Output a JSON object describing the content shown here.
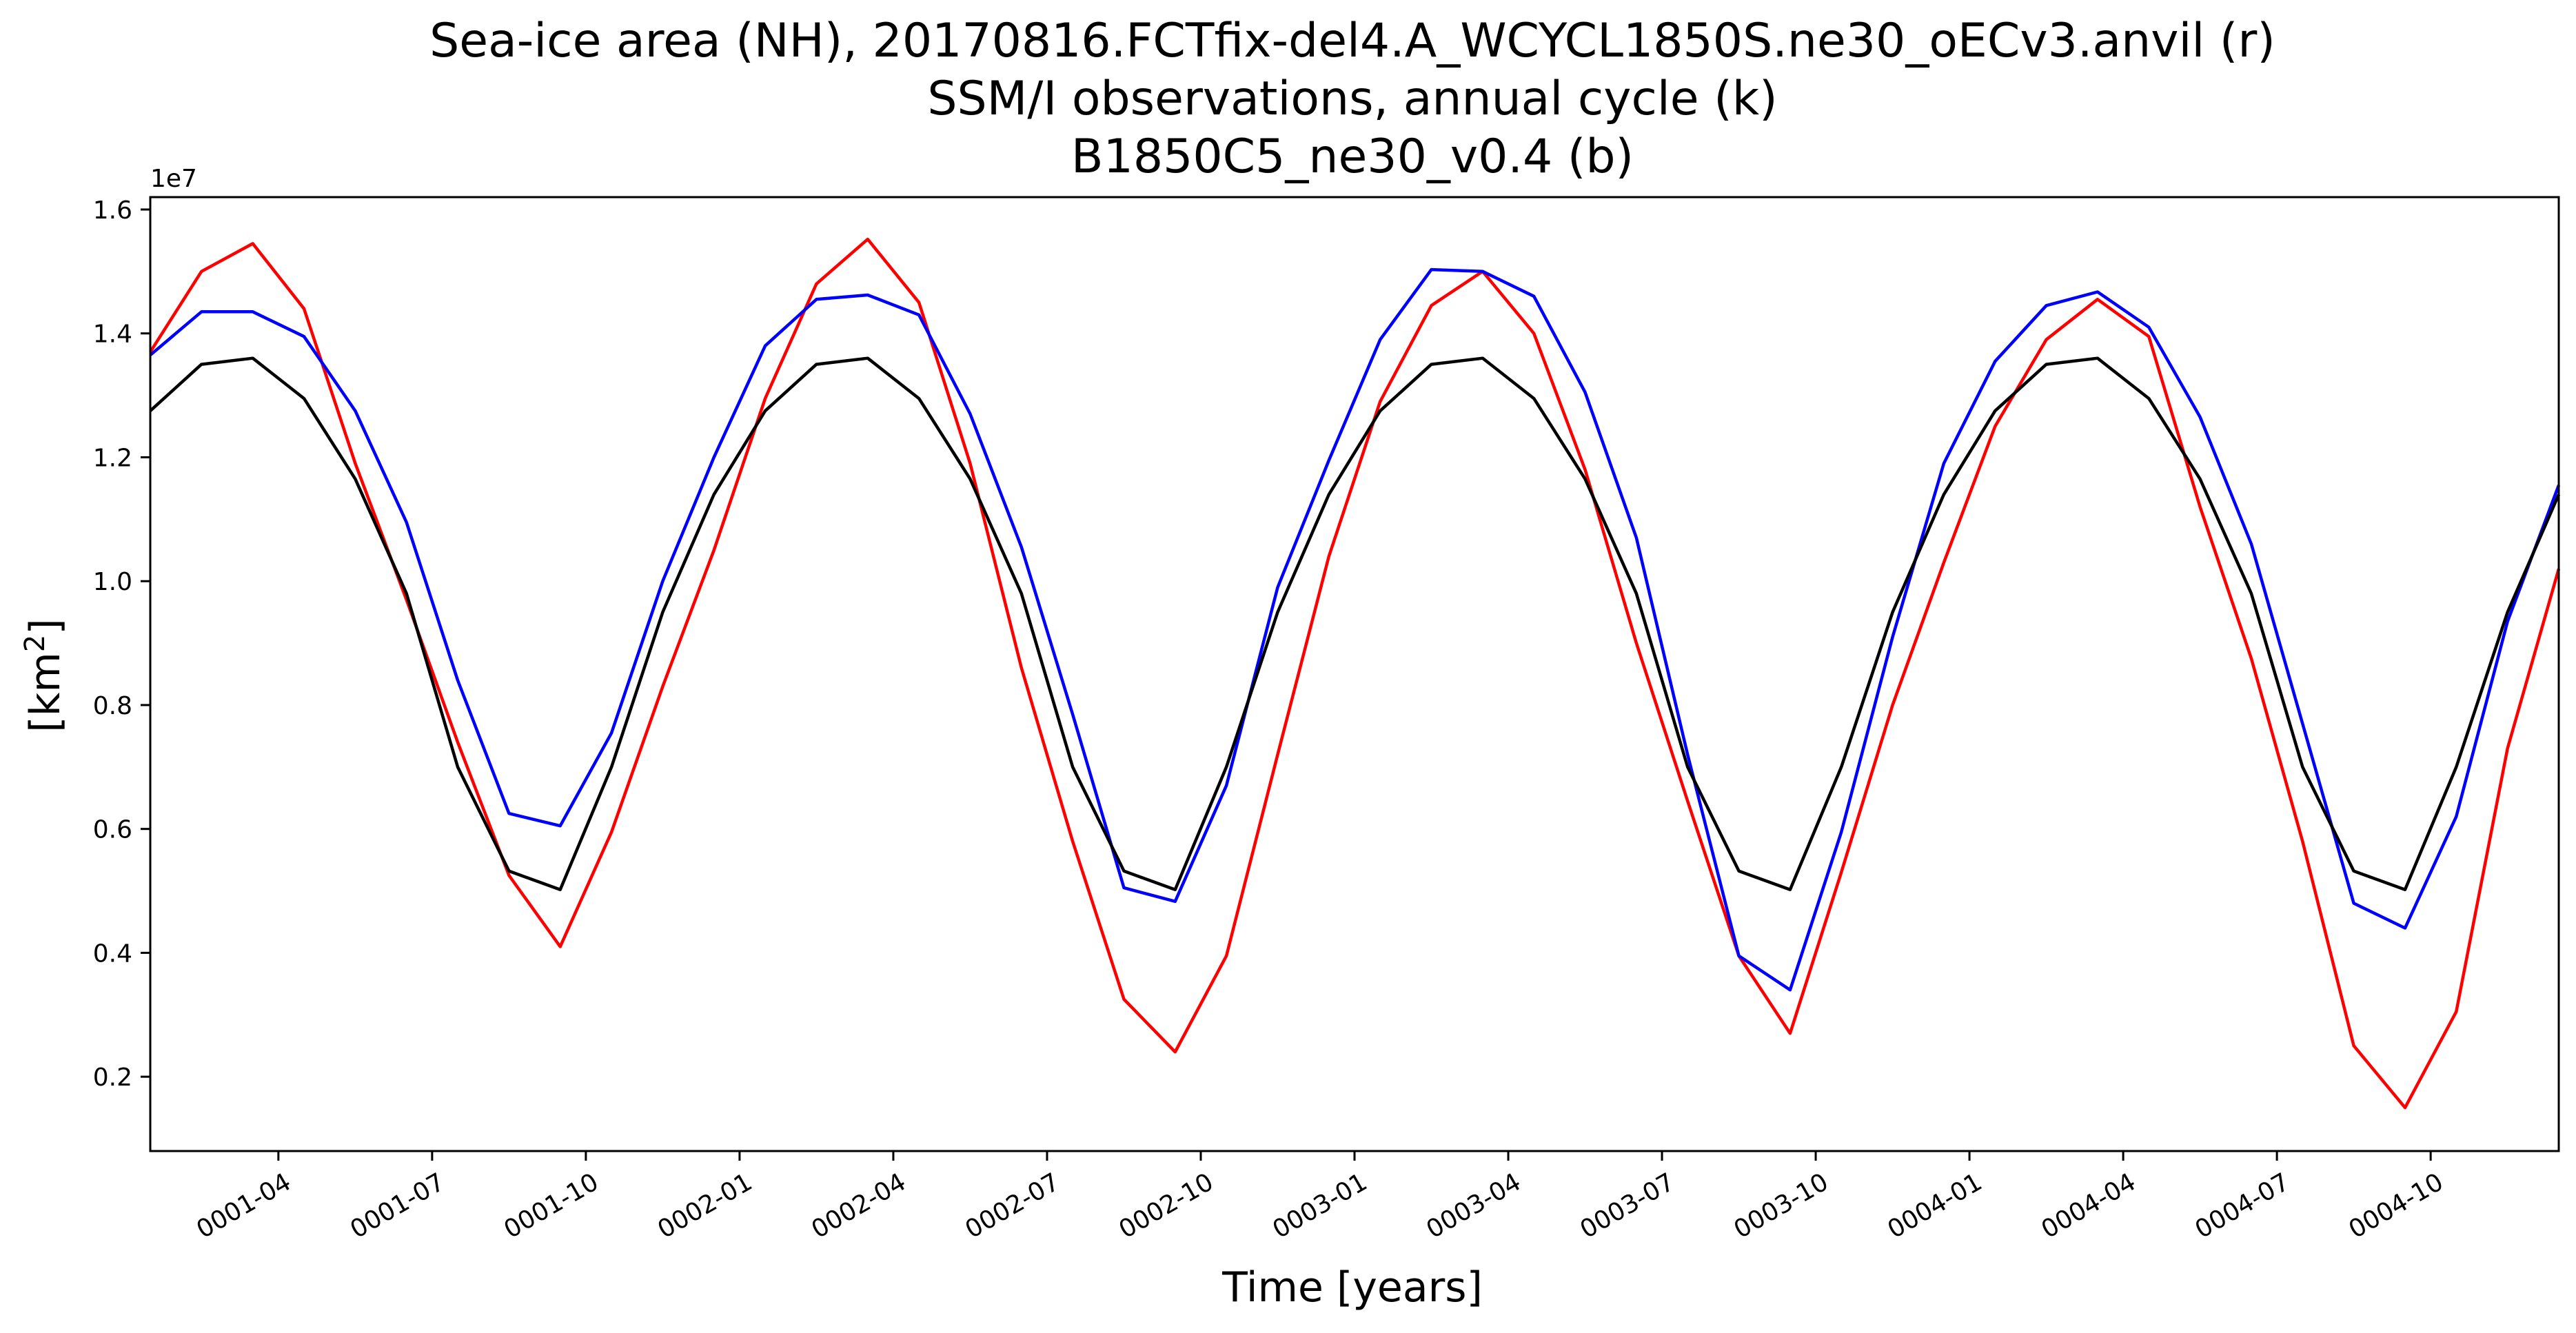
{
  "chart_data": {
    "type": "line",
    "title_lines": [
      "Sea-ice area (NH), 20170816.FCTfix-del4.A_WCYCL1850S.ne30_oECv3.anvil (r)",
      "SSM/I observations, annual cycle (k)",
      "B1850C5_ne30_v0.4 (b)"
    ],
    "xlabel": "Time [years]",
    "ylabel_text": "[km",
    "ylabel_sup": "2",
    "ylabel_close": "]",
    "y_offset_label": "1e7",
    "ylim": [
      0.08,
      1.62
    ],
    "xlim": [
      1,
      48
    ],
    "y_ticks": [
      0.2,
      0.4,
      0.6,
      0.8,
      1.0,
      1.2,
      1.4,
      1.6
    ],
    "y_tick_labels": [
      "0.2",
      "0.4",
      "0.6",
      "0.8",
      "1.0",
      "1.2",
      "1.4",
      "1.6"
    ],
    "x_ticks": [
      3.5,
      6.5,
      9.5,
      12.5,
      15.5,
      18.5,
      21.5,
      24.5,
      27.5,
      30.5,
      33.5,
      36.5,
      39.5,
      42.5,
      45.5
    ],
    "x_tick_labels": [
      "0001-04",
      "0001-07",
      "0001-10",
      "0002-01",
      "0002-04",
      "0002-07",
      "0002-10",
      "0003-01",
      "0003-04",
      "0003-07",
      "0003-10",
      "0004-01",
      "0004-04",
      "0004-07",
      "0004-10"
    ],
    "x": [
      1,
      2,
      3,
      4,
      5,
      6,
      7,
      8,
      9,
      10,
      11,
      12,
      13,
      14,
      15,
      16,
      17,
      18,
      19,
      20,
      21,
      22,
      23,
      24,
      25,
      26,
      27,
      28,
      29,
      30,
      31,
      32,
      33,
      34,
      35,
      36,
      37,
      38,
      39,
      40,
      41,
      42,
      43,
      44,
      45,
      46,
      47,
      48
    ],
    "series": [
      {
        "color": "#ff0000",
        "values": [
          1.37,
          1.5,
          1.545,
          1.44,
          1.19,
          0.97,
          0.74,
          0.525,
          0.41,
          0.595,
          0.83,
          1.05,
          1.295,
          1.48,
          1.552,
          1.45,
          1.19,
          0.86,
          0.58,
          0.325,
          0.24,
          0.395,
          0.72,
          1.04,
          1.29,
          1.445,
          1.5,
          1.4,
          1.18,
          0.9,
          0.645,
          0.395,
          0.27,
          0.53,
          0.8,
          1.03,
          1.25,
          1.39,
          1.455,
          1.395,
          1.12,
          0.875,
          0.58,
          0.25,
          0.15,
          0.305,
          0.73,
          1.02
        ]
      },
      {
        "color": "#0000ff",
        "values": [
          1.365,
          1.435,
          1.435,
          1.395,
          1.275,
          1.095,
          0.84,
          0.625,
          0.605,
          0.755,
          1.0,
          1.2,
          1.38,
          1.455,
          1.462,
          1.43,
          1.27,
          1.055,
          0.785,
          0.505,
          0.483,
          0.67,
          0.99,
          1.195,
          1.39,
          1.503,
          1.5,
          1.46,
          1.305,
          1.07,
          0.72,
          0.395,
          0.34,
          0.595,
          0.91,
          1.19,
          1.355,
          1.445,
          1.467,
          1.41,
          1.265,
          1.06,
          0.77,
          0.48,
          0.44,
          0.62,
          0.935,
          1.155
        ]
      },
      {
        "color": "#000000",
        "values": [
          1.275,
          1.35,
          1.36,
          1.295,
          1.165,
          0.98,
          0.7,
          0.532,
          0.502,
          0.7,
          0.95,
          1.14,
          1.275,
          1.35,
          1.36,
          1.295,
          1.165,
          0.98,
          0.7,
          0.532,
          0.502,
          0.7,
          0.95,
          1.14,
          1.275,
          1.35,
          1.36,
          1.295,
          1.165,
          0.98,
          0.7,
          0.532,
          0.502,
          0.7,
          0.95,
          1.14,
          1.275,
          1.35,
          1.36,
          1.295,
          1.165,
          0.98,
          0.7,
          0.532,
          0.502,
          0.7,
          0.95,
          1.14
        ]
      }
    ]
  }
}
